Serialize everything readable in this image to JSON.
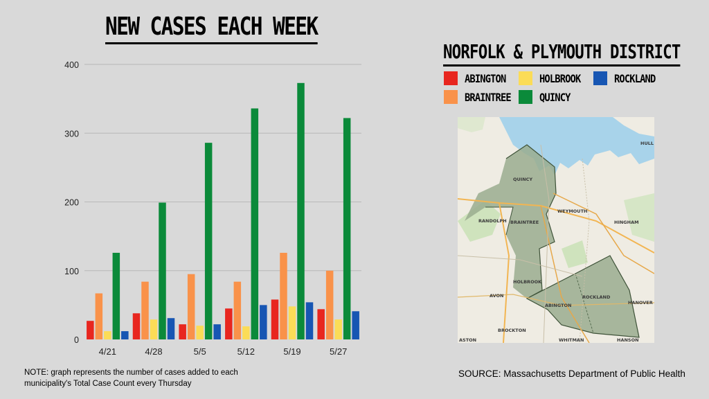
{
  "title": "NEW CASES EACH WEEK",
  "district_title": "NORFOLK & PLYMOUTH DISTRICT",
  "legend": [
    {
      "label": "ABINGTON",
      "color": "#e8261f"
    },
    {
      "label": "HOLBROOK",
      "color": "#fbdc57"
    },
    {
      "label": "ROCKLAND",
      "color": "#1756b3"
    },
    {
      "label": "BRAINTREE",
      "color": "#f9924a"
    },
    {
      "label": "QUINCY",
      "color": "#0b8a3a"
    }
  ],
  "map": {
    "labels": [
      "QUINCY",
      "WEYMOUTH",
      "BRAINTREE",
      "RANDOLPH",
      "HINGHAM",
      "HOLBROOK",
      "AVON",
      "ABINGTON",
      "ROCKLAND",
      "HANOVER",
      "BROCKTON",
      "WHITMAN",
      "HANSON",
      "HULL",
      "ASTON"
    ]
  },
  "note": "NOTE: graph represents the number of cases added to each municipality's Total Case Count every Thursday",
  "source": "SOURCE: Massachusetts Department of Public Health",
  "chart_data": {
    "type": "bar",
    "categories": [
      "4/21",
      "4/28",
      "5/5",
      "5/12",
      "5/19",
      "5/27"
    ],
    "series": [
      {
        "name": "ABINGTON",
        "color": "#e8261f",
        "values": [
          27,
          38,
          22,
          45,
          58,
          44
        ]
      },
      {
        "name": "BRAINTREE",
        "color": "#f9924a",
        "values": [
          67,
          84,
          95,
          84,
          126,
          100
        ]
      },
      {
        "name": "HOLBROOK",
        "color": "#fbdc57",
        "values": [
          12,
          29,
          20,
          19,
          48,
          29
        ]
      },
      {
        "name": "QUINCY",
        "color": "#0b8a3a",
        "values": [
          126,
          199,
          286,
          336,
          373,
          322
        ]
      },
      {
        "name": "ROCKLAND",
        "color": "#1756b3",
        "values": [
          12,
          31,
          22,
          50,
          54,
          41
        ]
      }
    ],
    "yticks": [
      0,
      100,
      200,
      300,
      400
    ],
    "ylim": [
      0,
      400
    ],
    "grid": true,
    "legend_placement": "right"
  }
}
